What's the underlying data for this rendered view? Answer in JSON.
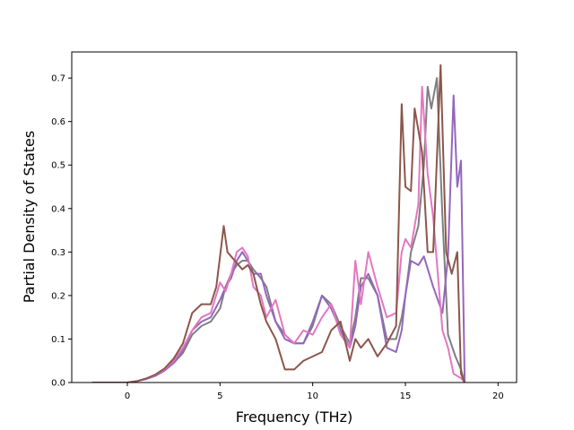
{
  "chart_data": {
    "type": "line",
    "title": "",
    "xlabel": "Frequency (THz)",
    "ylabel": "Partial Density of States",
    "xlim": [
      -3.0,
      21.0
    ],
    "ylim": [
      0.0,
      0.76
    ],
    "xticks": [
      0,
      5,
      10,
      15,
      20
    ],
    "yticks": [
      0.0,
      0.1,
      0.2,
      0.3,
      0.4,
      0.5,
      0.6,
      0.7
    ],
    "xtick_labels": [
      "0",
      "5",
      "10",
      "15",
      "20"
    ],
    "ytick_labels": [
      "0.0",
      "0.1",
      "0.2",
      "0.3",
      "0.4",
      "0.5",
      "0.6",
      "0.7"
    ],
    "grid": false,
    "legend": "none",
    "series": [
      {
        "color": "#7f7f7f",
        "points": [
          [
            -1.9,
            0
          ],
          [
            0,
            0
          ],
          [
            0.5,
            0.003
          ],
          [
            1,
            0.008
          ],
          [
            1.5,
            0.016
          ],
          [
            2,
            0.028
          ],
          [
            2.5,
            0.045
          ],
          [
            3,
            0.068
          ],
          [
            3.5,
            0.11
          ],
          [
            4,
            0.13
          ],
          [
            4.5,
            0.14
          ],
          [
            5,
            0.17
          ],
          [
            5.3,
            0.22
          ],
          [
            5.6,
            0.25
          ],
          [
            5.9,
            0.27
          ],
          [
            6.2,
            0.28
          ],
          [
            6.5,
            0.28
          ],
          [
            6.8,
            0.26
          ],
          [
            7.2,
            0.24
          ],
          [
            7.5,
            0.22
          ],
          [
            8,
            0.14
          ],
          [
            8.5,
            0.11
          ],
          [
            9,
            0.09
          ],
          [
            9.5,
            0.09
          ],
          [
            10,
            0.13
          ],
          [
            10.5,
            0.2
          ],
          [
            11,
            0.18
          ],
          [
            11.5,
            0.13
          ],
          [
            12,
            0.09
          ],
          [
            12.3,
            0.15
          ],
          [
            12.6,
            0.24
          ],
          [
            13,
            0.24
          ],
          [
            13.5,
            0.2
          ],
          [
            14,
            0.1
          ],
          [
            14.5,
            0.1
          ],
          [
            14.8,
            0.15
          ],
          [
            15,
            0.2
          ],
          [
            15.3,
            0.3
          ],
          [
            15.7,
            0.36
          ],
          [
            16,
            0.5
          ],
          [
            16.2,
            0.68
          ],
          [
            16.4,
            0.63
          ],
          [
            16.7,
            0.7
          ],
          [
            17,
            0.38
          ],
          [
            17.3,
            0.11
          ],
          [
            17.7,
            0.06
          ],
          [
            18,
            0.03
          ],
          [
            18.2,
            0
          ]
        ]
      },
      {
        "color": "#9467bd",
        "points": [
          [
            -1.9,
            0
          ],
          [
            0,
            0
          ],
          [
            0.5,
            0.003
          ],
          [
            1,
            0.008
          ],
          [
            1.5,
            0.015
          ],
          [
            2,
            0.027
          ],
          [
            2.5,
            0.045
          ],
          [
            3,
            0.075
          ],
          [
            3.5,
            0.12
          ],
          [
            4,
            0.14
          ],
          [
            4.5,
            0.15
          ],
          [
            5,
            0.19
          ],
          [
            5.3,
            0.22
          ],
          [
            5.6,
            0.24
          ],
          [
            5.9,
            0.28
          ],
          [
            6.2,
            0.3
          ],
          [
            6.5,
            0.28
          ],
          [
            6.8,
            0.25
          ],
          [
            7.2,
            0.25
          ],
          [
            7.5,
            0.2
          ],
          [
            8,
            0.14
          ],
          [
            8.5,
            0.1
          ],
          [
            9,
            0.09
          ],
          [
            9.5,
            0.09
          ],
          [
            10,
            0.14
          ],
          [
            10.5,
            0.2
          ],
          [
            11,
            0.17
          ],
          [
            11.5,
            0.12
          ],
          [
            12,
            0.08
          ],
          [
            12.3,
            0.13
          ],
          [
            12.6,
            0.22
          ],
          [
            13,
            0.25
          ],
          [
            13.5,
            0.2
          ],
          [
            14,
            0.08
          ],
          [
            14.5,
            0.07
          ],
          [
            14.8,
            0.12
          ],
          [
            15,
            0.2
          ],
          [
            15.3,
            0.28
          ],
          [
            15.7,
            0.27
          ],
          [
            16,
            0.29
          ],
          [
            16.5,
            0.22
          ],
          [
            17,
            0.16
          ],
          [
            17.3,
            0.29
          ],
          [
            17.6,
            0.66
          ],
          [
            17.8,
            0.45
          ],
          [
            18,
            0.51
          ],
          [
            18.2,
            0
          ]
        ]
      },
      {
        "color": "#e377c2",
        "points": [
          [
            -1.9,
            0
          ],
          [
            0,
            0
          ],
          [
            0.5,
            0.003
          ],
          [
            1,
            0.009
          ],
          [
            1.5,
            0.017
          ],
          [
            2,
            0.03
          ],
          [
            2.5,
            0.05
          ],
          [
            3,
            0.08
          ],
          [
            3.5,
            0.12
          ],
          [
            4,
            0.15
          ],
          [
            4.5,
            0.16
          ],
          [
            5,
            0.23
          ],
          [
            5.3,
            0.21
          ],
          [
            5.6,
            0.25
          ],
          [
            5.9,
            0.3
          ],
          [
            6.2,
            0.31
          ],
          [
            6.5,
            0.29
          ],
          [
            6.8,
            0.22
          ],
          [
            7.2,
            0.2
          ],
          [
            7.5,
            0.15
          ],
          [
            8,
            0.19
          ],
          [
            8.5,
            0.11
          ],
          [
            9,
            0.09
          ],
          [
            9.5,
            0.12
          ],
          [
            10,
            0.11
          ],
          [
            10.5,
            0.15
          ],
          [
            11,
            0.18
          ],
          [
            11.5,
            0.11
          ],
          [
            12,
            0.08
          ],
          [
            12.3,
            0.28
          ],
          [
            12.6,
            0.18
          ],
          [
            13,
            0.3
          ],
          [
            13.5,
            0.22
          ],
          [
            14,
            0.15
          ],
          [
            14.5,
            0.16
          ],
          [
            14.8,
            0.3
          ],
          [
            15,
            0.33
          ],
          [
            15.3,
            0.31
          ],
          [
            15.7,
            0.41
          ],
          [
            15.9,
            0.68
          ],
          [
            16.2,
            0.48
          ],
          [
            16.5,
            0.38
          ],
          [
            17,
            0.12
          ],
          [
            17.3,
            0.08
          ],
          [
            17.6,
            0.02
          ],
          [
            18,
            0.01
          ],
          [
            18.2,
            0
          ]
        ]
      },
      {
        "color": "#8c564b",
        "points": [
          [
            -1.9,
            0
          ],
          [
            0,
            0
          ],
          [
            0.5,
            0.003
          ],
          [
            1,
            0.009
          ],
          [
            1.5,
            0.018
          ],
          [
            2,
            0.032
          ],
          [
            2.5,
            0.055
          ],
          [
            3,
            0.09
          ],
          [
            3.5,
            0.16
          ],
          [
            4,
            0.18
          ],
          [
            4.5,
            0.18
          ],
          [
            4.8,
            0.22
          ],
          [
            5,
            0.29
          ],
          [
            5.2,
            0.36
          ],
          [
            5.4,
            0.3
          ],
          [
            5.8,
            0.28
          ],
          [
            6.2,
            0.26
          ],
          [
            6.5,
            0.27
          ],
          [
            6.8,
            0.25
          ],
          [
            7.2,
            0.18
          ],
          [
            7.5,
            0.14
          ],
          [
            8,
            0.1
          ],
          [
            8.5,
            0.03
          ],
          [
            9,
            0.03
          ],
          [
            9.5,
            0.05
          ],
          [
            10,
            0.06
          ],
          [
            10.5,
            0.07
          ],
          [
            11,
            0.12
          ],
          [
            11.5,
            0.14
          ],
          [
            12,
            0.05
          ],
          [
            12.3,
            0.1
          ],
          [
            12.6,
            0.08
          ],
          [
            13,
            0.1
          ],
          [
            13.5,
            0.06
          ],
          [
            14,
            0.09
          ],
          [
            14.5,
            0.13
          ],
          [
            14.8,
            0.64
          ],
          [
            15,
            0.45
          ],
          [
            15.3,
            0.44
          ],
          [
            15.5,
            0.63
          ],
          [
            15.9,
            0.53
          ],
          [
            16.2,
            0.3
          ],
          [
            16.5,
            0.3
          ],
          [
            16.9,
            0.73
          ],
          [
            17.2,
            0.3
          ],
          [
            17.5,
            0.25
          ],
          [
            17.8,
            0.3
          ],
          [
            18,
            0.02
          ],
          [
            18.2,
            0
          ]
        ]
      }
    ]
  }
}
